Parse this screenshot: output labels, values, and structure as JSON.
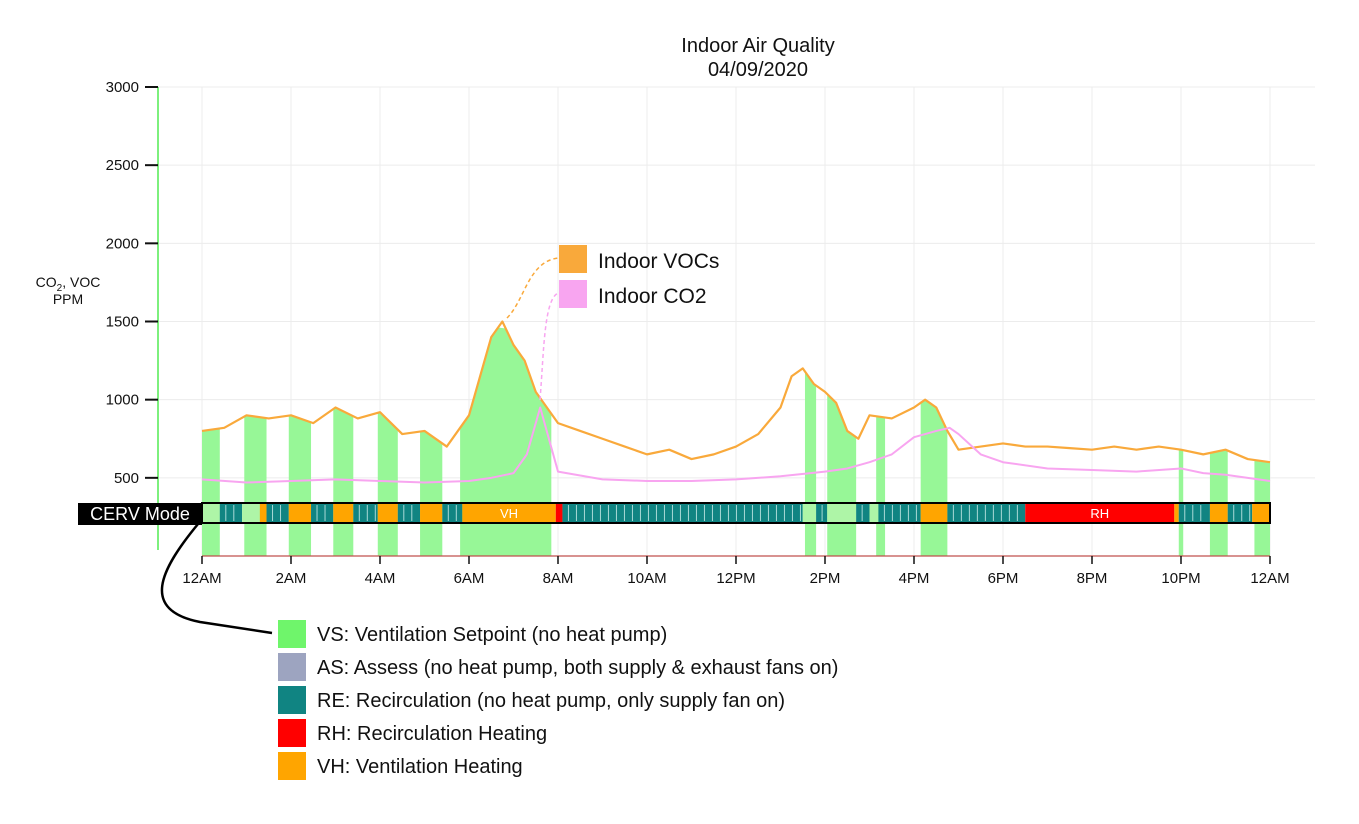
{
  "chart_data": {
    "type": "area",
    "title": "Indoor Air Quality",
    "subtitle": "04/09/2020",
    "ylabel": {
      "line1_main": "CO",
      "line1_sub": "2",
      "line1_rest": ", VOC",
      "line2": "PPM"
    },
    "ylim": [
      0,
      3000
    ],
    "yticks": [
      500,
      1000,
      1500,
      2000,
      2500,
      3000
    ],
    "xlim": [
      0,
      24
    ],
    "xticks": [
      {
        "value": 0,
        "label": "12AM"
      },
      {
        "value": 2,
        "label": "2AM"
      },
      {
        "value": 4,
        "label": "4AM"
      },
      {
        "value": 6,
        "label": "6AM"
      },
      {
        "value": 8,
        "label": "8AM"
      },
      {
        "value": 10,
        "label": "10AM"
      },
      {
        "value": 12,
        "label": "12PM"
      },
      {
        "value": 14,
        "label": "2PM"
      },
      {
        "value": 16,
        "label": "4PM"
      },
      {
        "value": 18,
        "label": "6PM"
      },
      {
        "value": 20,
        "label": "8PM"
      },
      {
        "value": 22,
        "label": "10PM"
      },
      {
        "value": 24,
        "label": "12AM"
      }
    ],
    "grid": true,
    "series": [
      {
        "name": "Indoor VOCs",
        "color": "#f9a93b",
        "x": [
          0,
          0.5,
          1,
          1.5,
          2,
          2.5,
          3,
          3.5,
          4,
          4.5,
          5,
          5.5,
          6,
          6.25,
          6.5,
          6.75,
          7,
          7.25,
          7.5,
          7.75,
          8,
          8.5,
          9,
          9.5,
          10,
          10.5,
          11,
          11.5,
          12,
          12.5,
          13,
          13.25,
          13.5,
          13.75,
          14,
          14.25,
          14.5,
          14.75,
          15,
          15.5,
          16,
          16.25,
          16.5,
          16.75,
          17,
          17.5,
          18,
          18.5,
          19,
          19.5,
          20,
          20.5,
          21,
          21.5,
          22,
          22.5,
          23,
          23.5,
          24
        ],
        "y": [
          800,
          820,
          900,
          880,
          900,
          850,
          950,
          880,
          920,
          780,
          800,
          700,
          900,
          1150,
          1400,
          1500,
          1350,
          1250,
          1050,
          950,
          850,
          800,
          750,
          700,
          650,
          680,
          620,
          650,
          700,
          780,
          950,
          1150,
          1200,
          1100,
          1050,
          980,
          800,
          750,
          900,
          880,
          950,
          1000,
          950,
          800,
          680,
          700,
          720,
          700,
          700,
          690,
          680,
          700,
          680,
          700,
          680,
          650,
          680,
          620,
          600
        ]
      },
      {
        "name": "Indoor CO2",
        "color": "#f8a5f0",
        "x": [
          0,
          1,
          2,
          3,
          4,
          5,
          6,
          6.5,
          7,
          7.3,
          7.6,
          8,
          9,
          10,
          11,
          12,
          13,
          14,
          14.5,
          15,
          15.5,
          16,
          16.5,
          16.8,
          17,
          17.5,
          18,
          19,
          20,
          21,
          22,
          22.5,
          23,
          23.5,
          24
        ],
        "y": [
          490,
          470,
          480,
          490,
          480,
          470,
          480,
          500,
          530,
          650,
          950,
          540,
          490,
          480,
          480,
          490,
          510,
          540,
          560,
          600,
          650,
          760,
          800,
          820,
          780,
          650,
          600,
          560,
          550,
          540,
          560,
          530,
          520,
          500,
          480
        ]
      }
    ],
    "vs_periods": [
      [
        0,
        0.4
      ],
      [
        0.95,
        1.45
      ],
      [
        1.95,
        2.45
      ],
      [
        2.95,
        3.4
      ],
      [
        3.95,
        4.4
      ],
      [
        4.9,
        5.4
      ],
      [
        5.8,
        7.85
      ],
      [
        13.55,
        13.8
      ],
      [
        14.05,
        14.7
      ],
      [
        15.15,
        15.35
      ],
      [
        16.15,
        16.75
      ],
      [
        21.95,
        22.05
      ],
      [
        22.65,
        23.05
      ],
      [
        23.65,
        24
      ]
    ],
    "mode_segments": [
      {
        "start": 0,
        "end": 0.4,
        "mode": "VS"
      },
      {
        "start": 0.4,
        "end": 0.9,
        "mode": "RE"
      },
      {
        "start": 0.9,
        "end": 1.3,
        "mode": "VS"
      },
      {
        "start": 1.3,
        "end": 1.45,
        "mode": "VH"
      },
      {
        "start": 1.45,
        "end": 1.95,
        "mode": "RE"
      },
      {
        "start": 1.95,
        "end": 2.45,
        "mode": "VH"
      },
      {
        "start": 2.45,
        "end": 2.95,
        "mode": "RE"
      },
      {
        "start": 2.95,
        "end": 3.4,
        "mode": "VH"
      },
      {
        "start": 3.4,
        "end": 3.95,
        "mode": "RE"
      },
      {
        "start": 3.95,
        "end": 4.4,
        "mode": "VH"
      },
      {
        "start": 4.4,
        "end": 4.9,
        "mode": "RE"
      },
      {
        "start": 4.9,
        "end": 5.4,
        "mode": "VH"
      },
      {
        "start": 5.4,
        "end": 5.85,
        "mode": "RE"
      },
      {
        "start": 5.85,
        "end": 7.95,
        "mode": "VH",
        "label": "VH"
      },
      {
        "start": 7.95,
        "end": 8.1,
        "mode": "RH"
      },
      {
        "start": 8.1,
        "end": 13.5,
        "mode": "RE"
      },
      {
        "start": 13.5,
        "end": 13.8,
        "mode": "VS"
      },
      {
        "start": 13.8,
        "end": 14.05,
        "mode": "RE"
      },
      {
        "start": 14.05,
        "end": 14.7,
        "mode": "VS"
      },
      {
        "start": 14.7,
        "end": 15.0,
        "mode": "RE"
      },
      {
        "start": 15.0,
        "end": 15.2,
        "mode": "VS"
      },
      {
        "start": 15.2,
        "end": 16.15,
        "mode": "RE"
      },
      {
        "start": 16.15,
        "end": 16.75,
        "mode": "VH"
      },
      {
        "start": 16.75,
        "end": 18.5,
        "mode": "RE"
      },
      {
        "start": 18.5,
        "end": 21.85,
        "mode": "RH",
        "label": "RH"
      },
      {
        "start": 21.85,
        "end": 21.95,
        "mode": "VH"
      },
      {
        "start": 21.95,
        "end": 22.65,
        "mode": "RE"
      },
      {
        "start": 22.65,
        "end": 23.05,
        "mode": "VH"
      },
      {
        "start": 23.05,
        "end": 23.6,
        "mode": "RE"
      },
      {
        "start": 23.6,
        "end": 24,
        "mode": "VH"
      }
    ],
    "mode_row_label": "CERV Mode",
    "mode_legend": [
      {
        "code": "VS",
        "label": "VS: Ventilation Setpoint (no heat pump)",
        "color": "#6ff56b"
      },
      {
        "code": "AS",
        "label": "AS: Assess (no heat pump, both supply & exhaust fans on)",
        "color": "#9da4c0"
      },
      {
        "code": "RE",
        "label": "RE: Recirculation (no heat pump, only supply fan on)",
        "color": "#108482"
      },
      {
        "code": "RH",
        "label": "RH: Recirculation Heating",
        "color": "#ff0000"
      },
      {
        "code": "VH",
        "label": "VH: Ventilation Heating",
        "color": "#ffa500"
      }
    ],
    "area_fill_color": "#97f797"
  }
}
